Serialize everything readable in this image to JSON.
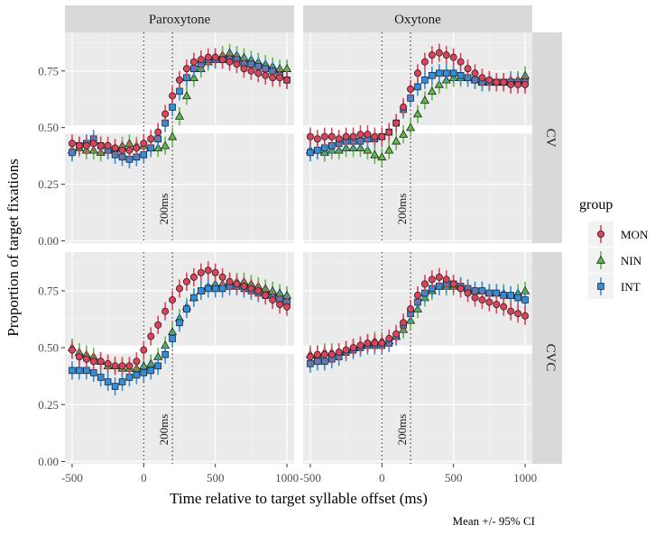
{
  "chart_data": {
    "type": "scatter",
    "xlabel": "Time relative to target syllable offset (ms)",
    "ylabel": "Proportion of target fixations",
    "caption": "Mean +/- 95% CI",
    "xlim": [
      -550,
      1050
    ],
    "ylim": [
      -0.01,
      0.92
    ],
    "xticks": [
      -500,
      0,
      500,
      1000
    ],
    "xtick_labels": [
      "-500",
      "0",
      "500",
      "1000"
    ],
    "yticks": [
      0,
      0.25,
      0.5,
      0.75
    ],
    "ytick_labels": [
      "0.00",
      "0.25",
      "0.50",
      "0.75"
    ],
    "grid": true,
    "legend": {
      "title": "group",
      "placement": "right",
      "items": [
        {
          "name": "MON",
          "shape": "circle",
          "color": "#E0415A"
        },
        {
          "name": "NIN",
          "shape": "triangle",
          "color": "#5DBB46"
        },
        {
          "name": "INT",
          "shape": "square",
          "color": "#2F8FE0"
        }
      ]
    },
    "column_strips": [
      "Paroxytone",
      "Oxytone"
    ],
    "row_strips": [
      "CV",
      "CVC"
    ],
    "vlines": [
      0,
      200
    ],
    "vline_label": "200ms",
    "ci_half_width": 0.04,
    "x": [
      -500,
      -450,
      -400,
      -350,
      -300,
      -250,
      -200,
      -150,
      -100,
      -50,
      0,
      50,
      100,
      150,
      200,
      250,
      300,
      350,
      400,
      450,
      500,
      550,
      600,
      650,
      700,
      750,
      800,
      850,
      900,
      950,
      1000
    ],
    "panels": [
      {
        "col": "Paroxytone",
        "row": "CV",
        "series": [
          {
            "name": "MON",
            "values": [
              0.43,
              0.42,
              0.42,
              0.43,
              0.42,
              0.42,
              0.41,
              0.4,
              0.4,
              0.41,
              0.43,
              0.45,
              0.48,
              0.56,
              0.64,
              0.71,
              0.76,
              0.79,
              0.8,
              0.81,
              0.81,
              0.8,
              0.79,
              0.78,
              0.76,
              0.75,
              0.74,
              0.73,
              0.72,
              0.72,
              0.71
            ]
          },
          {
            "name": "NIN",
            "values": [
              0.4,
              0.41,
              0.4,
              0.4,
              0.39,
              0.4,
              0.41,
              0.42,
              0.43,
              0.42,
              0.42,
              0.41,
              0.41,
              0.42,
              0.46,
              0.55,
              0.64,
              0.72,
              0.76,
              0.79,
              0.81,
              0.82,
              0.83,
              0.82,
              0.81,
              0.8,
              0.79,
              0.78,
              0.77,
              0.76,
              0.76
            ]
          },
          {
            "name": "INT",
            "values": [
              0.39,
              0.42,
              0.43,
              0.45,
              0.42,
              0.4,
              0.38,
              0.37,
              0.36,
              0.37,
              0.38,
              0.41,
              0.45,
              0.52,
              0.59,
              0.66,
              0.72,
              0.76,
              0.78,
              0.8,
              0.8,
              0.8,
              0.8,
              0.8,
              0.78,
              0.78,
              0.77,
              0.76,
              0.75,
              0.73,
              0.71
            ]
          }
        ]
      },
      {
        "col": "Oxytone",
        "row": "CV",
        "series": [
          {
            "name": "MON",
            "values": [
              0.46,
              0.45,
              0.46,
              0.46,
              0.45,
              0.46,
              0.46,
              0.47,
              0.47,
              0.46,
              0.46,
              0.48,
              0.52,
              0.59,
              0.67,
              0.74,
              0.79,
              0.82,
              0.83,
              0.82,
              0.81,
              0.79,
              0.76,
              0.74,
              0.72,
              0.71,
              0.7,
              0.7,
              0.69,
              0.69,
              0.69
            ]
          },
          {
            "name": "NIN",
            "values": [
              0.4,
              0.4,
              0.39,
              0.4,
              0.4,
              0.41,
              0.41,
              0.41,
              0.4,
              0.38,
              0.37,
              0.4,
              0.44,
              0.47,
              0.5,
              0.56,
              0.62,
              0.66,
              0.69,
              0.71,
              0.72,
              0.72,
              0.72,
              0.71,
              0.7,
              0.7,
              0.7,
              0.7,
              0.71,
              0.71,
              0.73
            ]
          },
          {
            "name": "INT",
            "values": [
              0.39,
              0.4,
              0.41,
              0.42,
              0.43,
              0.44,
              0.44,
              0.44,
              0.45,
              0.45,
              0.46,
              0.48,
              0.52,
              0.58,
              0.63,
              0.68,
              0.71,
              0.73,
              0.74,
              0.74,
              0.74,
              0.73,
              0.72,
              0.71,
              0.7,
              0.7,
              0.7,
              0.7,
              0.7,
              0.7,
              0.7
            ]
          }
        ]
      },
      {
        "col": "Paroxytone",
        "row": "CVC",
        "series": [
          {
            "name": "MON",
            "values": [
              0.49,
              0.46,
              0.45,
              0.44,
              0.44,
              0.43,
              0.42,
              0.42,
              0.42,
              0.44,
              0.49,
              0.55,
              0.6,
              0.66,
              0.71,
              0.76,
              0.79,
              0.81,
              0.83,
              0.84,
              0.83,
              0.81,
              0.79,
              0.78,
              0.77,
              0.76,
              0.75,
              0.73,
              0.71,
              0.69,
              0.68
            ]
          },
          {
            "name": "NIN",
            "values": [
              0.5,
              0.48,
              0.47,
              0.46,
              0.44,
              0.42,
              0.42,
              0.41,
              0.41,
              0.41,
              0.42,
              0.43,
              0.46,
              0.51,
              0.57,
              0.63,
              0.68,
              0.72,
              0.75,
              0.77,
              0.78,
              0.78,
              0.79,
              0.79,
              0.79,
              0.78,
              0.77,
              0.76,
              0.75,
              0.74,
              0.73
            ]
          },
          {
            "name": "INT",
            "values": [
              0.4,
              0.4,
              0.4,
              0.39,
              0.37,
              0.35,
              0.33,
              0.35,
              0.37,
              0.38,
              0.39,
              0.4,
              0.42,
              0.47,
              0.54,
              0.61,
              0.67,
              0.72,
              0.75,
              0.76,
              0.76,
              0.76,
              0.77,
              0.77,
              0.76,
              0.75,
              0.74,
              0.73,
              0.72,
              0.71,
              0.7
            ]
          }
        ]
      },
      {
        "col": "Oxytone",
        "row": "CVC",
        "series": [
          {
            "name": "MON",
            "values": [
              0.46,
              0.47,
              0.47,
              0.47,
              0.48,
              0.49,
              0.5,
              0.51,
              0.52,
              0.52,
              0.52,
              0.54,
              0.56,
              0.61,
              0.67,
              0.73,
              0.78,
              0.8,
              0.81,
              0.8,
              0.78,
              0.76,
              0.74,
              0.72,
              0.71,
              0.7,
              0.69,
              0.68,
              0.66,
              0.65,
              0.64
            ]
          },
          {
            "name": "NIN",
            "values": [
              0.47,
              0.47,
              0.48,
              0.48,
              0.48,
              0.49,
              0.5,
              0.51,
              0.52,
              0.53,
              0.53,
              0.53,
              0.55,
              0.58,
              0.62,
              0.67,
              0.72,
              0.75,
              0.77,
              0.77,
              0.77,
              0.77,
              0.76,
              0.75,
              0.75,
              0.74,
              0.74,
              0.74,
              0.73,
              0.74,
              0.75
            ]
          },
          {
            "name": "INT",
            "values": [
              0.43,
              0.44,
              0.44,
              0.45,
              0.46,
              0.48,
              0.49,
              0.5,
              0.51,
              0.51,
              0.51,
              0.52,
              0.55,
              0.6,
              0.65,
              0.7,
              0.74,
              0.76,
              0.77,
              0.78,
              0.78,
              0.77,
              0.76,
              0.75,
              0.75,
              0.74,
              0.74,
              0.73,
              0.73,
              0.72,
              0.71
            ]
          }
        ]
      }
    ]
  }
}
